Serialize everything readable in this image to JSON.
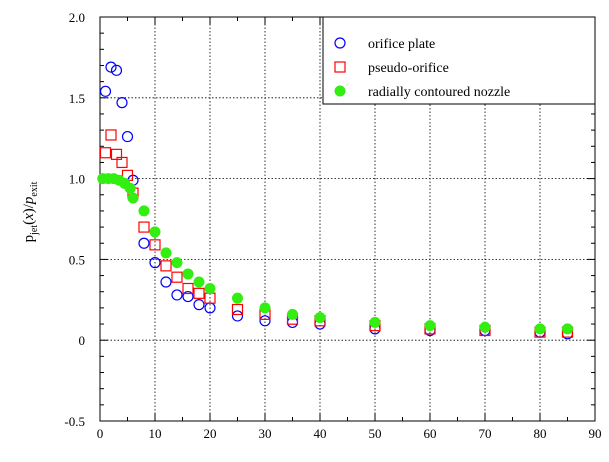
{
  "chart_data": {
    "type": "scatter",
    "xlabel": "",
    "ylabel": {
      "p1": "p",
      "p1_sub": "jet",
      "mid": "(",
      "x": "x",
      "mid2": ")/",
      "p2": "p",
      "p2_sub": "exit"
    },
    "xlim": [
      0,
      90
    ],
    "ylim": [
      -0.5,
      2.0
    ],
    "xticks": [
      0,
      10,
      20,
      30,
      40,
      50,
      60,
      70,
      80,
      90
    ],
    "yticks": [
      -0.5,
      0,
      0.5,
      1.0,
      1.5,
      2.0
    ],
    "ytick_labels": [
      "-0.5",
      "0",
      "0.5",
      "1.0",
      "1.5",
      "2.0"
    ],
    "grid": true,
    "legend_position": "top-right",
    "series": [
      {
        "name": "orifice plate",
        "marker": "open-circle",
        "color": "#0000ff",
        "x": [
          1,
          2,
          3,
          4,
          5,
          6,
          8,
          10,
          12,
          14,
          16,
          18,
          20,
          25,
          30,
          35,
          40,
          50,
          60,
          70,
          80,
          85
        ],
        "y": [
          1.54,
          1.69,
          1.67,
          1.47,
          1.26,
          0.99,
          0.6,
          0.48,
          0.36,
          0.28,
          0.27,
          0.22,
          0.2,
          0.15,
          0.12,
          0.11,
          0.1,
          0.07,
          0.06,
          0.06,
          0.05,
          0.04
        ]
      },
      {
        "name": "pseudo-orifice",
        "marker": "open-square",
        "color": "#ff0000",
        "x": [
          1,
          2,
          3,
          4,
          5,
          6,
          8,
          10,
          12,
          14,
          16,
          18,
          20,
          25,
          30,
          35,
          40,
          50,
          60,
          70,
          80,
          85
        ],
        "y": [
          1.16,
          1.27,
          1.15,
          1.1,
          1.02,
          0.91,
          0.7,
          0.59,
          0.46,
          0.39,
          0.32,
          0.29,
          0.26,
          0.19,
          0.16,
          0.13,
          0.12,
          0.09,
          0.07,
          0.06,
          0.05,
          0.05
        ]
      },
      {
        "name": "radially contoured nozzle",
        "marker": "filled-circle",
        "color": "#33ee11",
        "x": [
          0.5,
          1.5,
          2.5,
          3.5,
          4.5,
          5.5,
          6,
          8,
          10,
          12,
          14,
          16,
          18,
          20,
          25,
          30,
          35,
          40,
          50,
          60,
          70,
          80,
          85
        ],
        "y": [
          1.0,
          1.0,
          1.0,
          0.99,
          0.97,
          0.94,
          0.88,
          0.8,
          0.67,
          0.54,
          0.48,
          0.41,
          0.36,
          0.32,
          0.26,
          0.2,
          0.16,
          0.14,
          0.11,
          0.09,
          0.08,
          0.07,
          0.07
        ]
      }
    ]
  }
}
